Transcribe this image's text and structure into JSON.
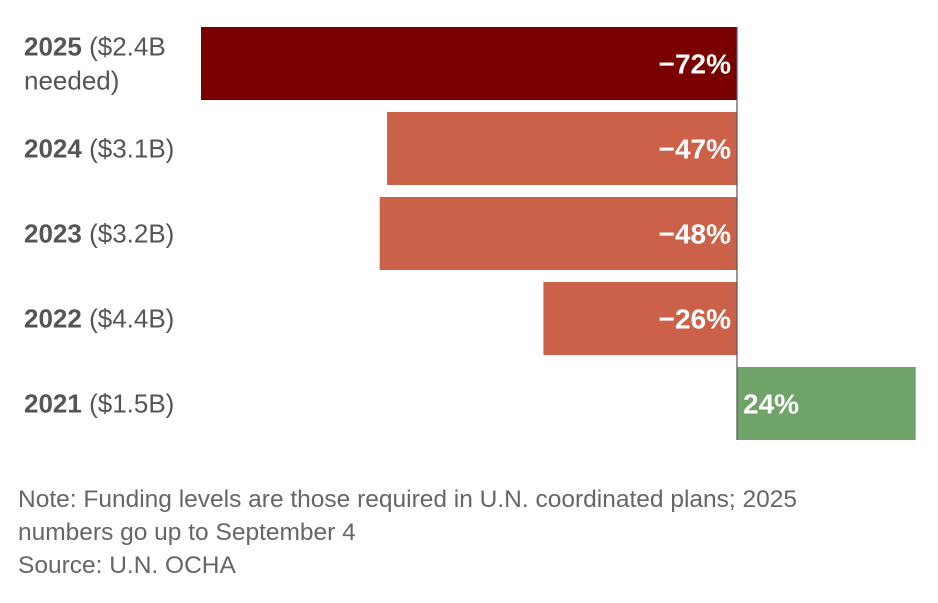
{
  "chart_data": {
    "type": "bar",
    "orientation": "horizontal",
    "unit": "percent",
    "categories": [
      {
        "year": "2025",
        "detail_lines": [
          "($2.4B",
          "needed)"
        ]
      },
      {
        "year": "2024",
        "detail_lines": [
          "($3.1B)"
        ]
      },
      {
        "year": "2023",
        "detail_lines": [
          "($3.2B)"
        ]
      },
      {
        "year": "2022",
        "detail_lines": [
          "($4.4B)"
        ]
      },
      {
        "year": "2021",
        "detail_lines": [
          "($1.5B)"
        ]
      }
    ],
    "values": [
      -72,
      -47,
      -48,
      -26,
      24
    ],
    "value_labels": [
      "−72%",
      "−47%",
      "−48%",
      "−26%",
      "24%"
    ],
    "colors": [
      "#7a0000",
      "#cc614a",
      "#cc614a",
      "#cc614a",
      "#6fa468"
    ],
    "xlim": [
      -72,
      24
    ]
  },
  "notes": {
    "note_line1": "Note: Funding levels are those required in U.N. coordinated plans; 2025",
    "note_line2": "numbers go up to September 4",
    "source": "Source: U.N. OCHA"
  }
}
